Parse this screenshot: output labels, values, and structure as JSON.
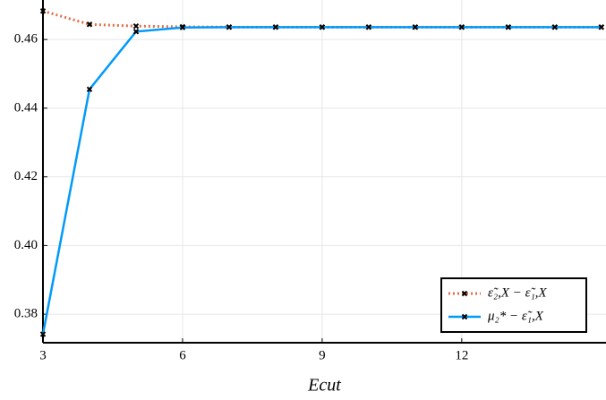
{
  "chart_data": {
    "type": "line",
    "xlabel": "Ecut",
    "x": [
      3,
      4,
      5,
      6,
      7,
      8,
      9,
      10,
      11,
      12,
      13,
      14,
      15
    ],
    "series": [
      {
        "name": "ε̃₂,X − ε̃₁,X",
        "color": "#e26f46",
        "style": "dotted",
        "values": [
          0.4683,
          0.4644,
          0.4639,
          0.4637,
          0.4636,
          0.4636,
          0.4636,
          0.4636,
          0.4636,
          0.4636,
          0.4636,
          0.4636,
          0.4636
        ]
      },
      {
        "name": "μ₂* − ε̃₁,X",
        "color": "#009af9",
        "style": "solid",
        "values": [
          0.3742,
          0.4455,
          0.4623,
          0.4635,
          0.4636,
          0.4636,
          0.4636,
          0.4636,
          0.4636,
          0.4636,
          0.4636,
          0.4636,
          0.4636
        ]
      }
    ],
    "xlim": [
      3,
      15.1
    ],
    "ylim": [
      0.3717,
      0.4715
    ],
    "xticks": [
      3,
      6,
      9,
      12
    ],
    "yticks": [
      0.38,
      {
        "value": 0.4,
        "label": "0.40"
      },
      0.42,
      0.44,
      0.46
    ],
    "grid": true,
    "legend": "lower right",
    "marker_color": "#000000"
  }
}
